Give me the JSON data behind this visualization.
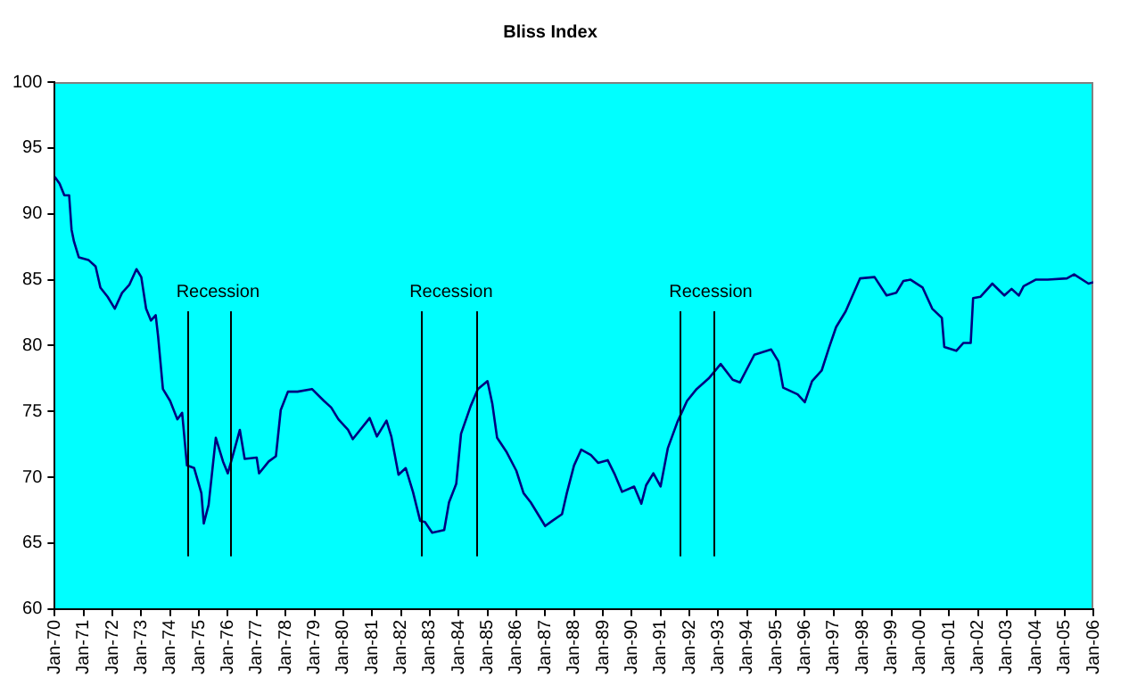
{
  "chart_data": {
    "type": "line",
    "title": "Bliss Index",
    "x": [
      "1970-01",
      "1970-03",
      "1970-05",
      "1970-07",
      "1970-08",
      "1970-09",
      "1970-11",
      "1971-03",
      "1971-06",
      "1971-08",
      "1971-11",
      "1972-02",
      "1972-05",
      "1972-08",
      "1972-11",
      "1973-01",
      "1973-03",
      "1973-05",
      "1973-07",
      "1973-08",
      "1973-10",
      "1974-01",
      "1974-04",
      "1974-06",
      "1974-08",
      "1974-11",
      "1975-02",
      "1975-03",
      "1975-05",
      "1975-08",
      "1975-11",
      "1976-01",
      "1976-03",
      "1976-06",
      "1976-08",
      "1977-01",
      "1977-02",
      "1977-06",
      "1977-09",
      "1977-11",
      "1978-02",
      "1978-06",
      "1978-12",
      "1979-05",
      "1979-08",
      "1979-11",
      "1980-03",
      "1980-05",
      "1980-12",
      "1981-03",
      "1981-07",
      "1981-09",
      "1981-12",
      "1982-03",
      "1982-06",
      "1982-09",
      "1982-11",
      "1983-02",
      "1983-07",
      "1983-09",
      "1983-12",
      "1984-02",
      "1984-06",
      "1984-09",
      "1985-01",
      "1985-03",
      "1985-05",
      "1985-09",
      "1986-01",
      "1986-04",
      "1986-07",
      "1987-01",
      "1987-04",
      "1987-08",
      "1987-10",
      "1988-01",
      "1988-04",
      "1988-08",
      "1988-11",
      "1989-03",
      "1989-06",
      "1989-09",
      "1990-02",
      "1990-05",
      "1990-07",
      "1990-10",
      "1991-01",
      "1991-04",
      "1991-08",
      "1991-12",
      "1992-04",
      "1992-09",
      "1993-02",
      "1993-07",
      "1993-10",
      "1994-04",
      "1994-11",
      "1995-02",
      "1995-04",
      "1995-10",
      "1996-01",
      "1996-04",
      "1996-08",
      "1996-11",
      "1997-02",
      "1997-06",
      "1997-12",
      "1998-06",
      "1998-11",
      "1999-03",
      "1999-06",
      "1999-09",
      "2000-02",
      "2000-06",
      "2000-10",
      "2000-11",
      "2001-04",
      "2001-07",
      "2001-10",
      "2001-11",
      "2002-02",
      "2002-07",
      "2002-12",
      "2003-03",
      "2003-06",
      "2003-08",
      "2004-01",
      "2004-06",
      "2005-02",
      "2005-05",
      "2005-11",
      "2006-01"
    ],
    "series": [
      {
        "color": "#000080",
        "values": [
          92.8,
          92.3,
          91.4,
          91.4,
          88.8,
          87.9,
          86.7,
          86.5,
          86.0,
          84.4,
          83.7,
          82.8,
          84.0,
          84.6,
          85.8,
          85.2,
          82.8,
          81.9,
          82.3,
          80.7,
          76.7,
          75.8,
          74.4,
          74.9,
          70.9,
          70.7,
          68.8,
          66.5,
          67.9,
          73.0,
          71.2,
          70.3,
          71.6,
          73.6,
          71.4,
          71.5,
          70.3,
          71.2,
          71.6,
          75.1,
          76.5,
          76.5,
          76.7,
          75.8,
          75.3,
          74.4,
          73.6,
          72.9,
          74.5,
          73.1,
          74.3,
          73.1,
          70.2,
          70.7,
          68.9,
          66.7,
          66.6,
          65.8,
          66.0,
          68.1,
          69.5,
          73.3,
          75.4,
          76.7,
          77.3,
          75.6,
          73.0,
          71.9,
          70.5,
          68.8,
          68.1,
          66.3,
          66.7,
          67.2,
          68.8,
          70.9,
          72.1,
          71.7,
          71.1,
          71.3,
          70.2,
          68.9,
          69.3,
          68.0,
          69.4,
          70.3,
          69.3,
          72.2,
          74.2,
          75.8,
          76.7,
          77.5,
          78.6,
          77.4,
          77.2,
          79.3,
          79.7,
          78.8,
          76.8,
          76.3,
          75.7,
          77.3,
          78.1,
          79.8,
          81.4,
          82.6,
          85.1,
          85.2,
          83.8,
          84.0,
          84.9,
          85.0,
          84.4,
          82.8,
          82.1,
          79.9,
          79.6,
          80.2,
          80.2,
          83.6,
          83.7,
          84.7,
          83.8,
          84.3,
          83.8,
          84.5,
          85.0,
          85.0,
          85.1,
          85.4,
          84.7,
          84.8
        ]
      }
    ],
    "xlim": [
      "1970-01",
      "2006-01"
    ],
    "xticks": [
      {
        "value": "1970-01",
        "label": "Jan-70"
      },
      {
        "value": "1971-01",
        "label": "Jan-71"
      },
      {
        "value": "1972-01",
        "label": "Jan-72"
      },
      {
        "value": "1973-01",
        "label": "Jan-73"
      },
      {
        "value": "1974-01",
        "label": "Jan-74"
      },
      {
        "value": "1975-01",
        "label": "Jan-75"
      },
      {
        "value": "1976-01",
        "label": "Jan-76"
      },
      {
        "value": "1977-01",
        "label": "Jan-77"
      },
      {
        "value": "1978-01",
        "label": "Jan-78"
      },
      {
        "value": "1979-01",
        "label": "Jan-79"
      },
      {
        "value": "1980-01",
        "label": "Jan-80"
      },
      {
        "value": "1981-01",
        "label": "Jan-81"
      },
      {
        "value": "1982-01",
        "label": "Jan-82"
      },
      {
        "value": "1983-01",
        "label": "Jan-83"
      },
      {
        "value": "1984-01",
        "label": "Jan-84"
      },
      {
        "value": "1985-01",
        "label": "Jan-85"
      },
      {
        "value": "1986-01",
        "label": "Jan-86"
      },
      {
        "value": "1987-01",
        "label": "Jan-87"
      },
      {
        "value": "1988-01",
        "label": "Jan-88"
      },
      {
        "value": "1989-01",
        "label": "Jan-89"
      },
      {
        "value": "1990-01",
        "label": "Jan-90"
      },
      {
        "value": "1991-01",
        "label": "Jan-91"
      },
      {
        "value": "1992-01",
        "label": "Jan-92"
      },
      {
        "value": "1993-01",
        "label": "Jan-93"
      },
      {
        "value": "1994-01",
        "label": "Jan-94"
      },
      {
        "value": "1995-01",
        "label": "Jan-95"
      },
      {
        "value": "1996-01",
        "label": "Jan-96"
      },
      {
        "value": "1997-01",
        "label": "Jan-97"
      },
      {
        "value": "1998-01",
        "label": "Jan-98"
      },
      {
        "value": "1999-01",
        "label": "Jan-99"
      },
      {
        "value": "2000-01",
        "label": "Jan-00"
      },
      {
        "value": "2001-01",
        "label": "Jan-01"
      },
      {
        "value": "2002-01",
        "label": "Jan-02"
      },
      {
        "value": "2003-01",
        "label": "Jan-03"
      },
      {
        "value": "2004-01",
        "label": "Jan-04"
      },
      {
        "value": "2005-01",
        "label": "Jan-05"
      },
      {
        "value": "2006-01",
        "label": "Jan-06"
      }
    ],
    "ylim": [
      60,
      100
    ],
    "yticks": [
      60,
      65,
      70,
      75,
      80,
      85,
      90,
      95,
      100
    ],
    "ref_lines": [
      {
        "axis": "x",
        "value": "1974-08",
        "label": "Recession",
        "color": "#000000"
      },
      {
        "axis": "x",
        "value": "1976-02",
        "color": "#000000"
      },
      {
        "axis": "x",
        "value": "1982-09",
        "label": "Recession",
        "color": "#000000"
      },
      {
        "axis": "x",
        "value": "1984-08",
        "color": "#000000"
      },
      {
        "axis": "x",
        "value": "1991-09",
        "label": "Recession",
        "color": "#000000"
      },
      {
        "axis": "x",
        "value": "1992-11",
        "color": "#000000"
      }
    ],
    "grid": false,
    "legend": false,
    "marker": "none",
    "line_style": "solid"
  }
}
